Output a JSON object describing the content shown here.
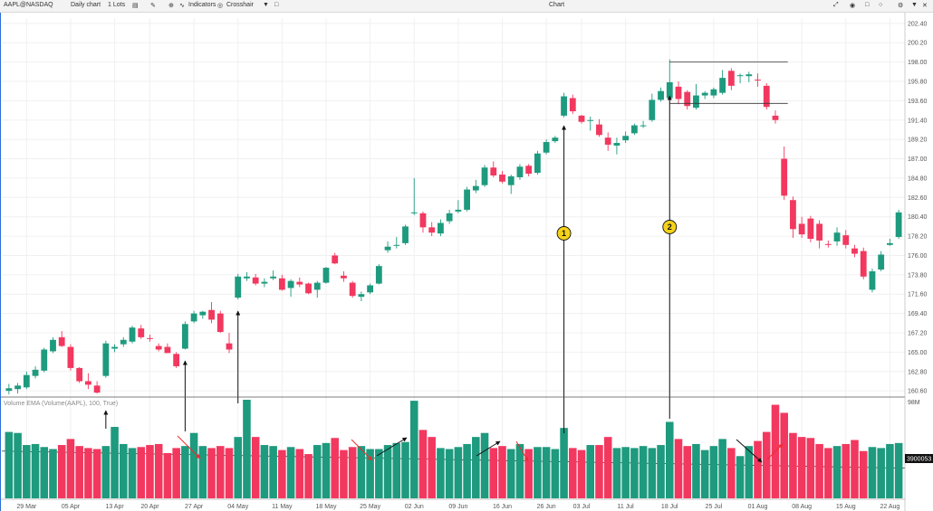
{
  "toolbar": {
    "symbol": "AAPL@NASDAQ",
    "interval": "Daily chart",
    "lots": "1 Lots",
    "indicators": "Indicators",
    "crosshair": "Crosshair",
    "title": "Chart"
  },
  "chart_data": {
    "type": "candlestick",
    "price_axis": {
      "ticks": [
        "202.40",
        "200.20",
        "198.00",
        "195.80",
        "193.60",
        "191.40",
        "189.20",
        "187.00",
        "184.80",
        "182.60",
        "180.40",
        "178.20",
        "176.00",
        "173.80",
        "171.60",
        "169.40",
        "167.20",
        "165.00",
        "162.80",
        "160.60"
      ],
      "range": [
        160.0,
        203.0
      ]
    },
    "volume_axis": {
      "label": "98M",
      "ema_value": "3900053",
      "range": [
        0,
        98
      ]
    },
    "volume_title": "Volume EMA (Volume(AAPL), 100, True)",
    "x_ticks": [
      "29 Mar",
      "05 Apr",
      "13 Apr",
      "20 Apr",
      "27 Apr",
      "04 May",
      "11 May",
      "18 May",
      "25 May",
      "02 Jun",
      "09 Jun",
      "16 Jun",
      "26 Jun",
      "03 Jul",
      "11 Jul",
      "18 Jul",
      "25 Jul",
      "01 Aug",
      "08 Aug",
      "15 Aug",
      "22 Aug"
    ],
    "candles": [
      {
        "o": 160.6,
        "h": 161.4,
        "l": 160.2,
        "c": 160.9
      },
      {
        "o": 160.8,
        "h": 161.5,
        "l": 160.3,
        "c": 161.2
      },
      {
        "o": 161.0,
        "h": 162.8,
        "l": 160.8,
        "c": 162.4
      },
      {
        "o": 162.3,
        "h": 163.4,
        "l": 162.0,
        "c": 163.0
      },
      {
        "o": 162.9,
        "h": 165.5,
        "l": 162.7,
        "c": 165.3
      },
      {
        "o": 165.1,
        "h": 166.7,
        "l": 164.9,
        "c": 166.4
      },
      {
        "o": 166.7,
        "h": 167.4,
        "l": 165.6,
        "c": 165.7
      },
      {
        "o": 165.6,
        "h": 165.9,
        "l": 162.9,
        "c": 163.2
      },
      {
        "o": 163.2,
        "h": 163.3,
        "l": 161.5,
        "c": 161.7
      },
      {
        "o": 161.7,
        "h": 162.6,
        "l": 160.8,
        "c": 161.3
      },
      {
        "o": 161.2,
        "h": 161.7,
        "l": 160.3,
        "c": 160.4
      },
      {
        "o": 162.3,
        "h": 166.3,
        "l": 162.1,
        "c": 166.0
      },
      {
        "o": 165.4,
        "h": 165.9,
        "l": 165.0,
        "c": 165.6
      },
      {
        "o": 165.9,
        "h": 166.7,
        "l": 165.6,
        "c": 166.4
      },
      {
        "o": 166.2,
        "h": 168.0,
        "l": 166.0,
        "c": 167.8
      },
      {
        "o": 167.7,
        "h": 168.1,
        "l": 166.5,
        "c": 166.7
      },
      {
        "o": 166.6,
        "h": 167.0,
        "l": 166.2,
        "c": 166.5
      },
      {
        "o": 165.7,
        "h": 166.0,
        "l": 165.1,
        "c": 165.3
      },
      {
        "o": 165.6,
        "h": 166.0,
        "l": 164.9,
        "c": 164.9
      },
      {
        "o": 164.8,
        "h": 165.0,
        "l": 163.2,
        "c": 163.4
      },
      {
        "o": 165.4,
        "h": 168.5,
        "l": 165.3,
        "c": 168.2
      },
      {
        "o": 168.5,
        "h": 169.7,
        "l": 168.3,
        "c": 169.4
      },
      {
        "o": 169.2,
        "h": 169.7,
        "l": 168.8,
        "c": 169.6
      },
      {
        "o": 169.8,
        "h": 170.7,
        "l": 168.3,
        "c": 168.7
      },
      {
        "o": 169.4,
        "h": 169.7,
        "l": 167.2,
        "c": 167.3
      },
      {
        "o": 166.0,
        "h": 167.2,
        "l": 164.9,
        "c": 165.3
      },
      {
        "o": 171.2,
        "h": 173.9,
        "l": 171.0,
        "c": 173.6
      },
      {
        "o": 173.4,
        "h": 174.1,
        "l": 173.1,
        "c": 173.6
      },
      {
        "o": 173.5,
        "h": 173.9,
        "l": 172.6,
        "c": 172.8
      },
      {
        "o": 172.8,
        "h": 173.4,
        "l": 172.4,
        "c": 173.0
      },
      {
        "o": 173.4,
        "h": 174.3,
        "l": 173.2,
        "c": 173.6
      },
      {
        "o": 173.4,
        "h": 173.8,
        "l": 172.0,
        "c": 172.1
      },
      {
        "o": 172.3,
        "h": 173.3,
        "l": 171.3,
        "c": 173.1
      },
      {
        "o": 173.0,
        "h": 173.5,
        "l": 172.4,
        "c": 172.7
      },
      {
        "o": 172.8,
        "h": 172.9,
        "l": 171.6,
        "c": 171.7
      },
      {
        "o": 172.1,
        "h": 173.1,
        "l": 171.2,
        "c": 172.9
      },
      {
        "o": 172.9,
        "h": 174.7,
        "l": 172.8,
        "c": 174.6
      },
      {
        "o": 176.0,
        "h": 176.3,
        "l": 175.0,
        "c": 175.1
      },
      {
        "o": 173.7,
        "h": 174.2,
        "l": 173.0,
        "c": 173.4
      },
      {
        "o": 172.9,
        "h": 173.1,
        "l": 171.2,
        "c": 171.4
      },
      {
        "o": 171.3,
        "h": 171.9,
        "l": 170.8,
        "c": 171.6
      },
      {
        "o": 171.8,
        "h": 172.8,
        "l": 171.6,
        "c": 172.6
      },
      {
        "o": 172.8,
        "h": 175.0,
        "l": 172.7,
        "c": 174.8
      },
      {
        "o": 176.6,
        "h": 177.6,
        "l": 176.3,
        "c": 177.0
      },
      {
        "o": 177.1,
        "h": 178.1,
        "l": 176.8,
        "c": 177.2
      },
      {
        "o": 177.4,
        "h": 179.5,
        "l": 177.2,
        "c": 179.3
      },
      {
        "o": 180.8,
        "h": 184.8,
        "l": 180.6,
        "c": 180.9
      },
      {
        "o": 180.8,
        "h": 181.0,
        "l": 178.6,
        "c": 179.2
      },
      {
        "o": 179.2,
        "h": 179.8,
        "l": 178.2,
        "c": 178.6
      },
      {
        "o": 178.5,
        "h": 180.1,
        "l": 178.2,
        "c": 179.7
      },
      {
        "o": 179.9,
        "h": 181.2,
        "l": 179.6,
        "c": 180.8
      },
      {
        "o": 181.0,
        "h": 182.3,
        "l": 180.8,
        "c": 181.2
      },
      {
        "o": 181.2,
        "h": 183.8,
        "l": 181.0,
        "c": 183.5
      },
      {
        "o": 183.4,
        "h": 184.6,
        "l": 183.1,
        "c": 183.9
      },
      {
        "o": 184.0,
        "h": 186.3,
        "l": 183.8,
        "c": 186.0
      },
      {
        "o": 186.0,
        "h": 186.7,
        "l": 184.9,
        "c": 185.1
      },
      {
        "o": 185.2,
        "h": 185.6,
        "l": 184.2,
        "c": 184.4
      },
      {
        "o": 184.0,
        "h": 185.2,
        "l": 183.0,
        "c": 185.0
      },
      {
        "o": 184.9,
        "h": 186.4,
        "l": 184.6,
        "c": 186.1
      },
      {
        "o": 186.2,
        "h": 186.4,
        "l": 185.0,
        "c": 185.3
      },
      {
        "o": 185.4,
        "h": 187.9,
        "l": 185.2,
        "c": 187.6
      },
      {
        "o": 187.7,
        "h": 189.2,
        "l": 187.5,
        "c": 188.9
      },
      {
        "o": 189.0,
        "h": 189.6,
        "l": 188.8,
        "c": 189.4
      },
      {
        "o": 191.9,
        "h": 194.5,
        "l": 191.7,
        "c": 194.1
      },
      {
        "o": 193.9,
        "h": 194.3,
        "l": 192.1,
        "c": 192.4
      },
      {
        "o": 191.9,
        "h": 192.0,
        "l": 191.0,
        "c": 191.2
      },
      {
        "o": 191.3,
        "h": 191.8,
        "l": 190.2,
        "c": 191.4
      },
      {
        "o": 190.9,
        "h": 191.5,
        "l": 189.5,
        "c": 189.7
      },
      {
        "o": 189.4,
        "h": 190.0,
        "l": 187.9,
        "c": 188.6
      },
      {
        "o": 188.5,
        "h": 189.4,
        "l": 187.5,
        "c": 188.8
      },
      {
        "o": 189.1,
        "h": 190.1,
        "l": 188.8,
        "c": 189.6
      },
      {
        "o": 189.9,
        "h": 191.0,
        "l": 189.7,
        "c": 190.8
      },
      {
        "o": 190.7,
        "h": 191.3,
        "l": 190.5,
        "c": 190.8
      },
      {
        "o": 191.4,
        "h": 194.4,
        "l": 191.2,
        "c": 193.7
      },
      {
        "o": 193.7,
        "h": 195.1,
        "l": 193.5,
        "c": 194.7
      },
      {
        "o": 193.9,
        "h": 198.3,
        "l": 193.7,
        "c": 195.7
      },
      {
        "o": 195.2,
        "h": 195.8,
        "l": 193.2,
        "c": 193.8
      },
      {
        "o": 194.6,
        "h": 194.8,
        "l": 192.6,
        "c": 193.0
      },
      {
        "o": 192.8,
        "h": 195.5,
        "l": 192.6,
        "c": 194.2
      },
      {
        "o": 194.2,
        "h": 194.7,
        "l": 193.8,
        "c": 194.5
      },
      {
        "o": 194.2,
        "h": 195.1,
        "l": 193.9,
        "c": 194.9
      },
      {
        "o": 194.5,
        "h": 197.1,
        "l": 194.3,
        "c": 196.2
      },
      {
        "o": 197.0,
        "h": 197.3,
        "l": 194.8,
        "c": 195.3
      },
      {
        "o": 196.4,
        "h": 196.7,
        "l": 195.6,
        "c": 196.5
      },
      {
        "o": 196.4,
        "h": 196.9,
        "l": 195.7,
        "c": 196.6
      },
      {
        "o": 196.0,
        "h": 196.7,
        "l": 195.2,
        "c": 195.9
      },
      {
        "o": 195.3,
        "h": 195.6,
        "l": 192.6,
        "c": 192.9
      },
      {
        "o": 191.9,
        "h": 192.5,
        "l": 191.0,
        "c": 191.4
      },
      {
        "o": 187.0,
        "h": 188.4,
        "l": 182.3,
        "c": 182.8
      },
      {
        "o": 182.3,
        "h": 182.7,
        "l": 178.0,
        "c": 179.0
      },
      {
        "o": 179.6,
        "h": 180.4,
        "l": 178.0,
        "c": 178.4
      },
      {
        "o": 180.2,
        "h": 180.5,
        "l": 177.5,
        "c": 177.9
      },
      {
        "o": 179.6,
        "h": 180.0,
        "l": 176.8,
        "c": 177.7
      },
      {
        "o": 177.3,
        "h": 177.7,
        "l": 176.9,
        "c": 177.2
      },
      {
        "o": 177.6,
        "h": 179.2,
        "l": 177.1,
        "c": 178.6
      },
      {
        "o": 178.3,
        "h": 178.9,
        "l": 176.8,
        "c": 177.2
      },
      {
        "o": 176.8,
        "h": 177.2,
        "l": 175.8,
        "c": 176.2
      },
      {
        "o": 176.5,
        "h": 176.9,
        "l": 173.3,
        "c": 173.6
      },
      {
        "o": 172.1,
        "h": 174.5,
        "l": 171.8,
        "c": 174.2
      },
      {
        "o": 174.4,
        "h": 176.5,
        "l": 174.2,
        "c": 176.1
      },
      {
        "o": 177.2,
        "h": 177.9,
        "l": 177.1,
        "c": 177.4
      },
      {
        "o": 178.1,
        "h": 181.2,
        "l": 177.9,
        "c": 180.9
      }
    ],
    "volumes": [
      66,
      65,
      53,
      54,
      51,
      49,
      53,
      59,
      52,
      50,
      49,
      52,
      71,
      54,
      50,
      51,
      53,
      54,
      45,
      50,
      52,
      65,
      52,
      50,
      52,
      50,
      61,
      98,
      61,
      53,
      52,
      48,
      51,
      49,
      44,
      53,
      55,
      60,
      48,
      51,
      52,
      49,
      49,
      53,
      55,
      56,
      97,
      68,
      61,
      50,
      49,
      51,
      54,
      61,
      65,
      50,
      52,
      49,
      54,
      49,
      51,
      51,
      49,
      70,
      50,
      48,
      53,
      53,
      61,
      50,
      51,
      50,
      52,
      50,
      53,
      76,
      59,
      52,
      54,
      48,
      52,
      59,
      50,
      42,
      52,
      57,
      66,
      93,
      85,
      65,
      61,
      60,
      54,
      50,
      52,
      54,
      58,
      47,
      51,
      50,
      54,
      55
    ],
    "resistance_level": 198.0,
    "support_level": 193.3,
    "markers": [
      {
        "label": "1"
      },
      {
        "label": "2"
      }
    ],
    "colors": {
      "up": "#1e9a7e",
      "down": "#f2385f",
      "marker": "#f5d21a",
      "annotation_red": "#f22b2b",
      "annotation_black": "#111111"
    }
  }
}
